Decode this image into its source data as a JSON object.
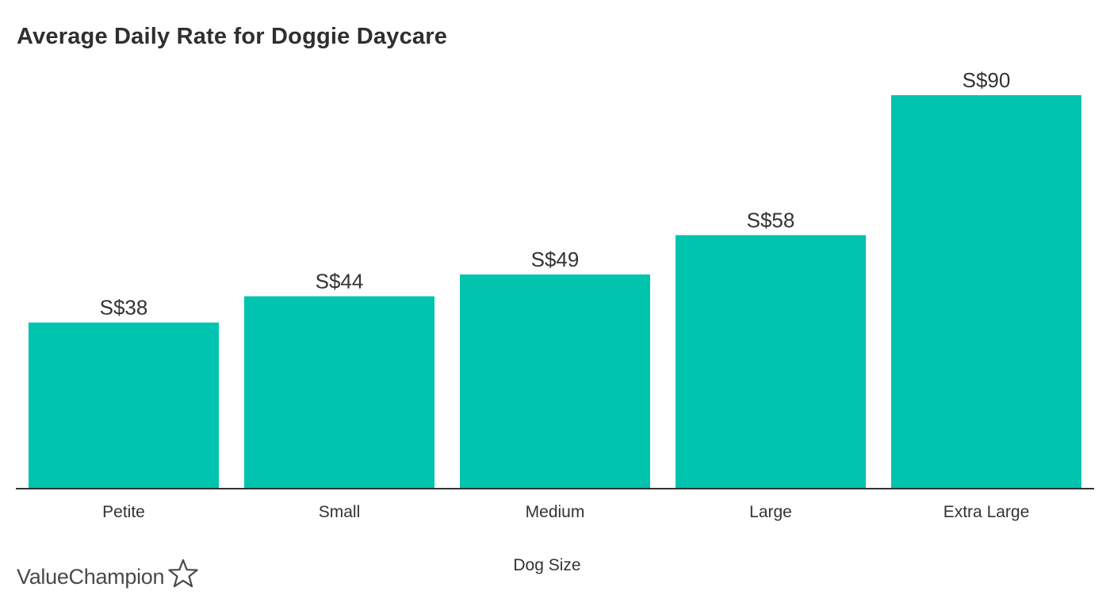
{
  "brand": {
    "name": "ValueChampion"
  },
  "colors": {
    "bar": "#00c4ad",
    "axis": "#333333",
    "text": "#333333"
  },
  "chart_data": {
    "type": "bar",
    "title": "Average Daily Rate for Doggie Daycare",
    "xlabel": "Dog Size",
    "ylabel": "",
    "categories": [
      "Petite",
      "Small",
      "Medium",
      "Large",
      "Extra Large"
    ],
    "values": [
      38,
      44,
      49,
      58,
      90
    ],
    "data_labels": [
      "S$38",
      "S$44",
      "S$49",
      "S$58",
      "S$90"
    ],
    "ylim": [
      0,
      100
    ],
    "grid": false,
    "legend": "none"
  }
}
